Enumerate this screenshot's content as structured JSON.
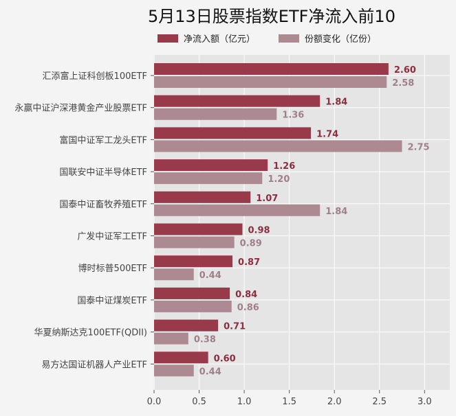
{
  "chart_data": {
    "type": "bar",
    "orientation": "horizontal",
    "title": "5月13日股票指数ETF净流入前10",
    "categories": [
      "汇添富上证科创板100ETF",
      "永赢中证沪深港黄金产业股票ETF",
      "富国中证军工龙头ETF",
      "国联安中证半导体ETF",
      "国泰中证畜牧养殖ETF",
      "广发中证军工ETF",
      "博时标普500ETF",
      "国泰中证煤炭ETF",
      "华夏纳斯达克100ETF(QDII)",
      "易方达国证机器人产业ETF"
    ],
    "series": [
      {
        "name": "净流入额（亿元）",
        "color": "#983a4a",
        "values": [
          2.6,
          1.84,
          1.74,
          1.26,
          1.07,
          0.98,
          0.87,
          0.84,
          0.71,
          0.6
        ],
        "labels": [
          "2.60",
          "1.84",
          "1.74",
          "1.26",
          "1.07",
          "0.98",
          "0.87",
          "0.84",
          "0.71",
          "0.60"
        ]
      },
      {
        "name": "份额变化（亿份）",
        "color": "#ad8a92",
        "values": [
          2.58,
          1.36,
          2.75,
          1.2,
          1.84,
          0.89,
          0.44,
          0.86,
          0.38,
          0.44
        ],
        "labels": [
          "2.58",
          "1.36",
          "2.75",
          "1.20",
          "1.84",
          "0.89",
          "0.44",
          "0.86",
          "0.38",
          "0.44"
        ]
      }
    ],
    "xlim": [
      0,
      3.28
    ],
    "xticks": [
      "0.0",
      "0.5",
      "1.0",
      "1.5",
      "2.0",
      "2.5",
      "3.0"
    ],
    "grid": true,
    "legend_position": "top-center",
    "label_colors": [
      "#8a2f40",
      "#a08088"
    ]
  }
}
